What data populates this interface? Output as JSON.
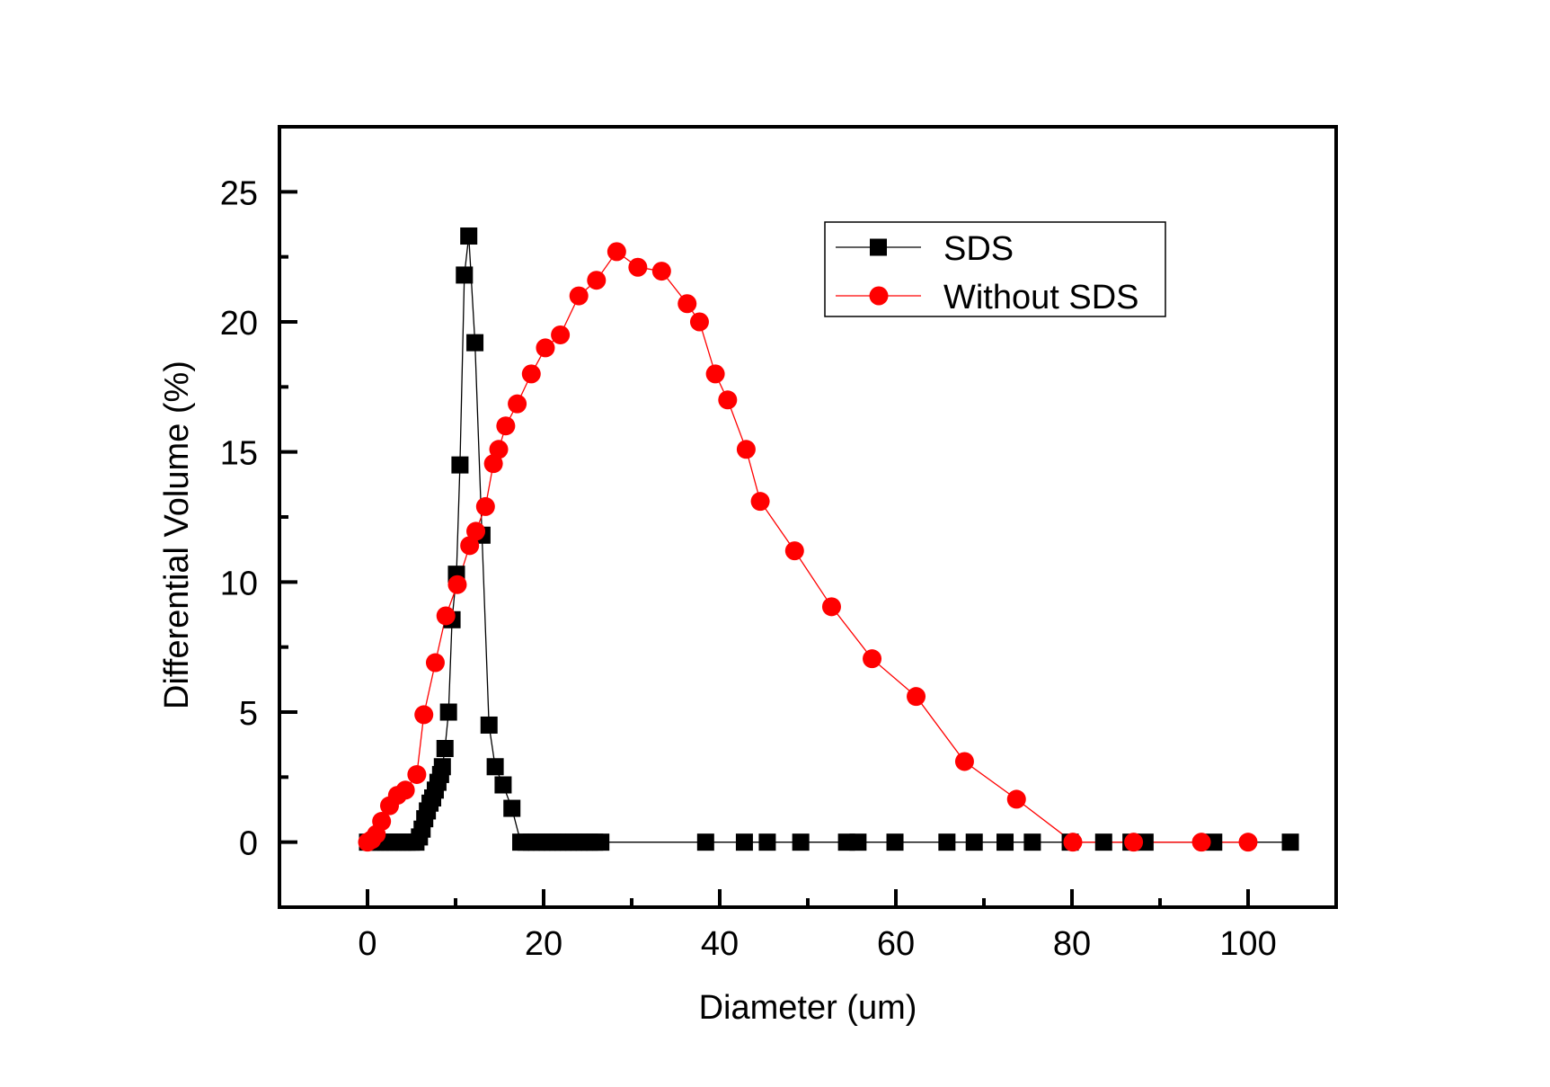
{
  "chart_data": {
    "type": "line",
    "title": "",
    "xlabel": "Diameter (um)",
    "ylabel": "Differential Volume (%)",
    "xlim": [
      -10,
      110
    ],
    "ylim": [
      -2.5,
      27.5
    ],
    "xticks": [
      0,
      20,
      40,
      60,
      80,
      100
    ],
    "xtick_labels": [
      "0",
      "20",
      "40",
      "60",
      "80",
      "100"
    ],
    "xminor": [
      10,
      30,
      50,
      70,
      90
    ],
    "yticks": [
      0,
      5,
      10,
      15,
      20,
      25
    ],
    "ytick_labels": [
      "0",
      "5",
      "10",
      "15",
      "20",
      "25"
    ],
    "yminor": [
      2.5,
      7.5,
      12.5,
      17.5,
      22.5
    ],
    "grid": false,
    "legend_position": "top-right",
    "series": [
      {
        "name": "SDS",
        "color": "#000000",
        "marker": "square",
        "x": [
          0,
          0.5,
          1,
          1.5,
          2,
          2.5,
          3,
          3.5,
          4,
          4.5,
          5,
          5.5,
          5.9,
          6.2,
          6.5,
          6.8,
          7.1,
          7.4,
          7.7,
          8.0,
          8.3,
          8.5,
          8.8,
          9.2,
          9.6,
          10.1,
          10.5,
          11.0,
          11.5,
          12.2,
          13.0,
          13.8,
          14.5,
          15.4,
          16.4,
          17.4,
          18.0,
          18.6,
          19.2,
          19.8,
          20.4,
          21.0,
          21.6,
          22.2,
          22.8,
          23.4,
          24.0,
          24.6,
          25.2,
          25.8,
          26.5,
          38.4,
          42.8,
          45.4,
          49.2,
          54.4,
          55.7,
          59.9,
          65.8,
          68.9,
          72.4,
          75.5,
          79.8,
          83.6,
          86.7,
          88.3,
          96.1,
          104.8
        ],
        "y": [
          0,
          0,
          0,
          0,
          0,
          0,
          0,
          0,
          0,
          0,
          0,
          0,
          0.2,
          0.5,
          0.9,
          1.2,
          1.5,
          1.7,
          2.0,
          2.3,
          2.6,
          2.9,
          3.6,
          5.0,
          8.55,
          10.3,
          14.5,
          21.8,
          23.3,
          19.2,
          11.8,
          4.5,
          2.9,
          2.2,
          1.3,
          0,
          0,
          0,
          0,
          0,
          0,
          0,
          0,
          0,
          0,
          0,
          0,
          0,
          0,
          0,
          0,
          0,
          0,
          0,
          0,
          0,
          0,
          0,
          0,
          0,
          0,
          0,
          0,
          0,
          0,
          0,
          0,
          0
        ]
      },
      {
        "name": "Without SDS",
        "color": "#ff0000",
        "marker": "circle",
        "x": [
          0,
          0.5,
          1.0,
          1.6,
          2.5,
          3.4,
          4.3,
          5.6,
          6.4,
          7.7,
          8.9,
          10.2,
          11.6,
          12.3,
          13.4,
          14.3,
          14.9,
          15.7,
          17.0,
          18.6,
          20.2,
          21.9,
          24.0,
          26.0,
          28.3,
          30.7,
          33.4,
          36.3,
          37.7,
          39.5,
          40.9,
          43.0,
          44.6,
          48.5,
          52.7,
          57.3,
          62.3,
          67.8,
          73.7,
          80.1,
          87.0,
          94.7,
          100.0
        ],
        "y": [
          0,
          0.1,
          0.3,
          0.8,
          1.4,
          1.8,
          2.0,
          2.6,
          4.9,
          6.9,
          8.7,
          9.9,
          11.4,
          11.95,
          12.9,
          14.55,
          15.1,
          16.0,
          16.85,
          18.0,
          19.0,
          19.5,
          21.0,
          21.6,
          22.7,
          22.1,
          21.95,
          20.7,
          20.0,
          18.0,
          17.0,
          15.1,
          13.1,
          11.2,
          9.05,
          7.05,
          5.6,
          3.1,
          1.65,
          0,
          0,
          0,
          0
        ]
      }
    ]
  }
}
